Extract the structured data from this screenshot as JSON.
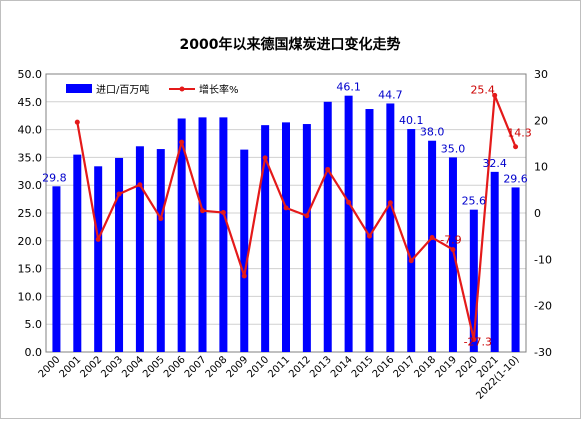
{
  "chart_data": {
    "type": "bar",
    "title": "2000年以来德国煤炭进口变化走势",
    "categories": [
      "2000",
      "2001",
      "2002",
      "2003",
      "2004",
      "2005",
      "2006",
      "2007",
      "2008",
      "2009",
      "2010",
      "2011",
      "2012",
      "2013",
      "2014",
      "2015",
      "2016",
      "2017",
      "2018",
      "2019",
      "2020",
      "2021",
      "2022(1-10)"
    ],
    "series": [
      {
        "name": "进口/百万吨",
        "type": "bar",
        "axis": "left",
        "color": "#0000ff",
        "values": [
          29.8,
          35.5,
          33.4,
          34.9,
          37.0,
          36.5,
          42.0,
          42.2,
          42.2,
          36.4,
          40.8,
          41.3,
          41.0,
          45.0,
          46.1,
          43.7,
          44.7,
          40.1,
          38.0,
          35.0,
          25.6,
          32.4,
          29.6
        ],
        "data_labels": {
          "0": "29.8",
          "14": "46.1",
          "16": "44.7",
          "17": "40.1",
          "18": "38.0",
          "19": "35.0",
          "20": "25.6",
          "21": "32.4",
          "22": "29.6"
        },
        "label_color": "#0000cc"
      },
      {
        "name": "增长率%",
        "type": "line",
        "axis": "right",
        "color": "#e41a1a",
        "values": [
          null,
          19.6,
          -5.7,
          4.1,
          6.1,
          -1.2,
          15.3,
          0.5,
          0.1,
          -13.6,
          11.9,
          1.1,
          -0.6,
          9.4,
          2.3,
          -5.0,
          2.2,
          -10.3,
          -5.3,
          -7.9,
          -27.3,
          25.4,
          14.3
        ],
        "data_labels": {
          "19": "-7.9",
          "20": "-27.3",
          "21": "25.4",
          "22": "14.3"
        },
        "label_color": "#cc0000"
      }
    ],
    "y_left": {
      "min": 0,
      "max": 50,
      "step": 5,
      "ticks": [
        "0.0",
        "5.0",
        "10.0",
        "15.0",
        "20.0",
        "25.0",
        "30.0",
        "35.0",
        "40.0",
        "45.0",
        "50.0"
      ]
    },
    "y_right": {
      "min": -30,
      "max": 30,
      "step": 10,
      "ticks": [
        "-30",
        "-20",
        "-10",
        "0",
        "10",
        "20",
        "30"
      ]
    },
    "grid": true,
    "legend_position": "top-left"
  }
}
